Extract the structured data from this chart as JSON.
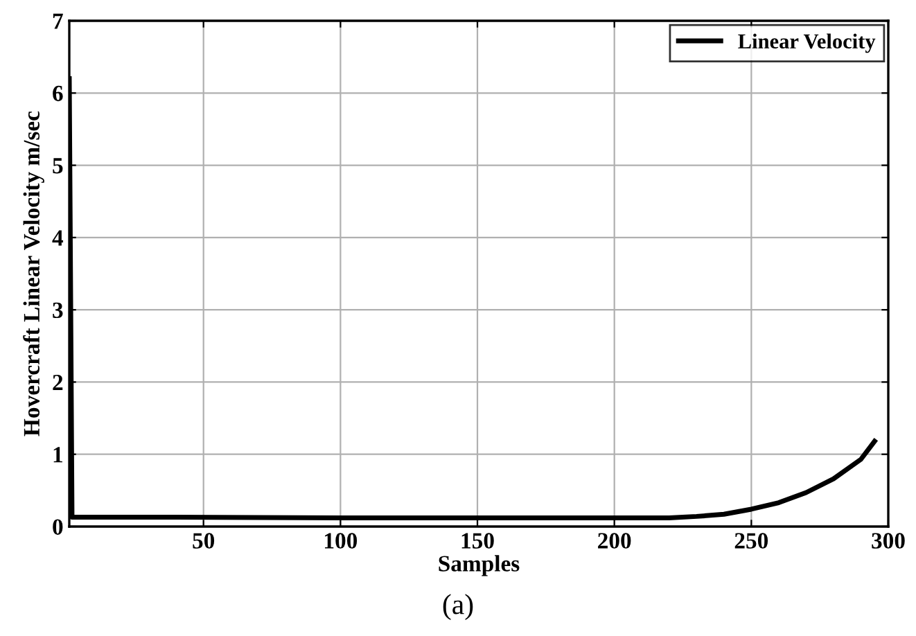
{
  "chart_data": {
    "type": "line",
    "xlabel": "Samples",
    "ylabel": "Hovercraft Linear Velocity m/sec",
    "annotations": [
      "(a)"
    ],
    "series": [
      {
        "name": "Linear Velocity",
        "color": "#000000",
        "x": [
          1,
          2,
          40,
          100,
          150,
          200,
          220,
          230,
          240,
          250,
          260,
          270,
          280,
          290,
          295
        ],
        "values": [
          6.2,
          0.13,
          0.13,
          0.12,
          0.12,
          0.12,
          0.12,
          0.14,
          0.17,
          0.24,
          0.33,
          0.47,
          0.66,
          0.93,
          1.18
        ]
      }
    ],
    "xlim": [
      1,
      300
    ],
    "xticks": [
      50,
      100,
      150,
      200,
      250,
      300
    ],
    "ylim": [
      0,
      7
    ],
    "yticks": [
      0,
      1,
      2,
      3,
      4,
      5,
      6,
      7
    ],
    "grid": true,
    "legend": "top right",
    "line_style": "solid",
    "marker": "none"
  }
}
